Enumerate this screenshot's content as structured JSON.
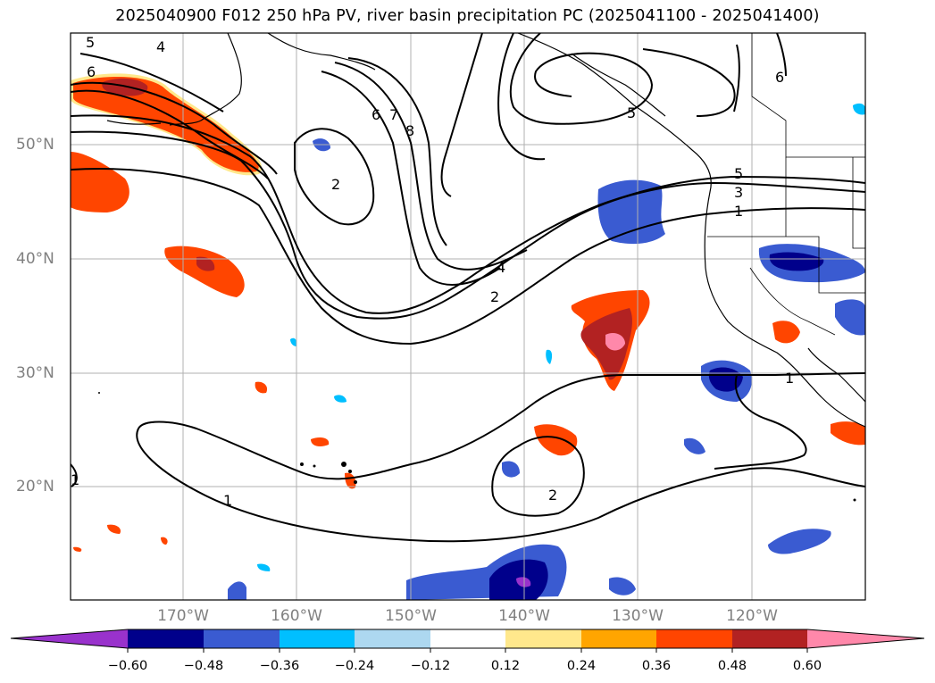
{
  "title": "2025040900 F012 250 hPa PV, river basin precipitation PC (2025041100 - 2025041400)",
  "map": {
    "lat_labels": [
      "50°N",
      "40°N",
      "30°N",
      "20°N"
    ],
    "lon_labels": [
      "170°W",
      "160°W",
      "150°W",
      "140°W",
      "130°W",
      "120°W"
    ],
    "pv_contour_labels": [
      "5",
      "4",
      "6",
      "2",
      "6",
      "7",
      "8",
      "5",
      "6",
      "5",
      "3",
      "1",
      "4",
      "2",
      "1",
      "2",
      "1",
      "1"
    ]
  },
  "colorbar": {
    "colors": [
      "#9932cc",
      "#00008b",
      "#3a5bd1",
      "#00bfff",
      "#add8f0",
      "#ffffff",
      "#ffe88c",
      "#ffa500",
      "#ff4500",
      "#b22222",
      "#ff88aa"
    ],
    "ticks": [
      "−0.60",
      "−0.48",
      "−0.36",
      "−0.24",
      "−0.12",
      "0.12",
      "0.24",
      "0.36",
      "0.48",
      "0.60"
    ]
  }
}
